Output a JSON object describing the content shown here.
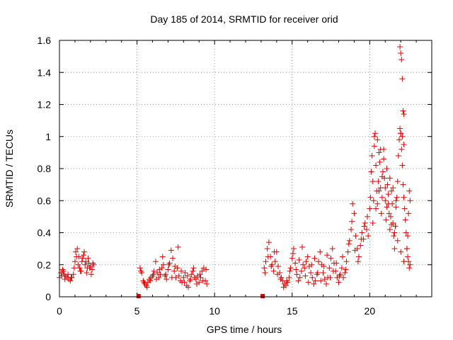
{
  "chart_data": {
    "type": "scatter",
    "title": "Day 185 of 2014, SRMTID for receiver orid",
    "xlabel": "GPS time / hours",
    "ylabel": "SRMTID / TECUs",
    "xlim": [
      0,
      24
    ],
    "ylim": [
      0,
      1.6
    ],
    "x_ticks": [
      0,
      5,
      10,
      15,
      20
    ],
    "x_tick_labels": [
      "0",
      "5",
      "10",
      "15",
      "20"
    ],
    "y_ticks": [
      0,
      0.2,
      0.4,
      0.6,
      0.8,
      1.0,
      1.2,
      1.4,
      1.6
    ],
    "y_tick_labels": [
      "0",
      "0.2",
      "0.4",
      "0.6",
      "0.8",
      "1",
      "1.2",
      "1.4",
      "1.6"
    ],
    "grid": true,
    "marker": "+",
    "color": "#e00000",
    "zero_markers": [
      {
        "x": 5.1,
        "y": 0
      },
      {
        "x": 13.1,
        "y": 0
      }
    ],
    "series": [
      {
        "name": "SRMTID",
        "x": [
          0.0,
          0.1,
          0.2,
          0.3,
          0.4,
          0.5,
          0.6,
          0.7,
          0.8,
          0.9,
          1.0,
          1.05,
          1.1,
          1.2,
          1.3,
          1.4,
          1.5,
          1.6,
          1.7,
          1.8,
          1.9,
          2.0,
          2.1,
          2.2,
          5.2,
          5.3,
          5.4,
          5.5,
          5.6,
          5.7,
          5.8,
          5.9,
          6.0,
          6.1,
          6.2,
          6.3,
          6.4,
          6.5,
          6.6,
          6.7,
          6.8,
          6.9,
          7.0,
          7.1,
          7.2,
          7.3,
          7.4,
          7.5,
          7.6,
          7.7,
          7.8,
          7.9,
          8.0,
          8.1,
          8.2,
          8.3,
          8.4,
          8.5,
          8.6,
          8.7,
          8.8,
          8.9,
          9.0,
          9.1,
          9.2,
          9.3,
          9.4,
          9.5,
          13.2,
          13.3,
          13.4,
          13.5,
          13.6,
          13.7,
          13.8,
          13.9,
          14.0,
          14.1,
          14.2,
          14.3,
          14.4,
          14.5,
          14.6,
          14.7,
          14.8,
          14.9,
          15.0,
          15.1,
          15.2,
          15.3,
          15.4,
          15.5,
          15.6,
          15.7,
          15.8,
          15.9,
          16.0,
          16.1,
          16.2,
          16.3,
          16.4,
          16.5,
          16.6,
          16.7,
          16.8,
          16.9,
          17.0,
          17.1,
          17.2,
          17.3,
          17.4,
          17.5,
          17.6,
          17.7,
          17.8,
          17.9,
          18.0,
          18.1,
          18.2,
          18.3,
          18.4,
          18.5,
          18.6,
          18.7,
          18.8,
          18.9,
          19.0,
          19.1,
          19.2,
          19.3,
          19.4,
          19.5,
          19.6,
          19.7,
          19.8,
          19.9,
          20.0,
          20.05,
          20.1,
          20.15,
          20.2,
          20.25,
          20.3,
          20.35,
          20.4,
          20.45,
          20.5,
          20.55,
          20.6,
          20.65,
          20.7,
          20.75,
          20.8,
          20.85,
          20.9,
          20.95,
          21.0,
          21.05,
          21.1,
          21.15,
          21.2,
          21.25,
          21.3,
          21.35,
          21.4,
          21.45,
          21.5,
          21.55,
          21.6,
          21.65,
          21.7,
          21.75,
          21.8,
          21.85,
          21.9,
          21.95,
          22.0,
          22.05,
          22.1,
          22.15,
          22.2,
          22.25,
          22.3,
          22.35,
          22.4,
          22.45,
          22.5,
          22.55,
          22.6,
          21.95,
          22.0,
          22.05,
          22.1,
          22.15,
          22.2,
          22.0,
          22.1,
          22.2,
          20.3,
          20.5,
          20.7,
          20.9,
          21.1,
          21.3,
          21.5,
          21.7,
          20.2,
          20.4,
          20.6,
          20.8,
          21.0,
          21.2,
          21.4,
          21.6,
          21.8,
          22.0,
          22.2,
          22.4,
          22.5,
          22.6,
          22.55,
          22.45,
          0.15,
          0.25,
          0.35,
          0.55,
          0.75,
          0.95,
          1.15,
          1.25,
          1.35,
          1.45,
          1.55,
          1.65,
          1.75,
          1.85,
          1.95,
          2.05,
          2.15,
          5.25,
          5.45,
          5.65,
          5.85,
          6.05,
          6.25,
          6.45,
          6.65,
          6.85,
          7.05,
          7.25,
          7.45,
          7.65,
          7.85,
          8.05,
          8.25,
          8.45,
          8.65,
          8.85,
          9.05,
          9.25,
          9.45,
          13.25,
          13.45,
          13.65,
          13.85,
          14.05,
          14.25,
          14.45,
          14.65,
          14.85,
          15.05,
          15.25,
          15.45,
          15.65,
          15.85,
          16.05,
          16.25,
          16.45,
          16.65,
          16.85,
          17.05,
          17.25,
          17.45,
          17.65,
          17.85,
          18.05,
          18.25,
          18.45,
          18.65,
          18.85,
          19.05,
          19.25,
          19.45,
          19.65,
          19.85
        ],
        "y": [
          0.12,
          0.15,
          0.17,
          0.14,
          0.13,
          0.12,
          0.11,
          0.1,
          0.12,
          0.14,
          0.22,
          0.28,
          0.25,
          0.2,
          0.18,
          0.16,
          0.24,
          0.28,
          0.22,
          0.18,
          0.21,
          0.19,
          0.17,
          0.2,
          0.18,
          0.15,
          0.1,
          0.08,
          0.07,
          0.09,
          0.11,
          0.12,
          0.13,
          0.16,
          0.22,
          0.15,
          0.12,
          0.14,
          0.18,
          0.2,
          0.13,
          0.11,
          0.17,
          0.21,
          0.29,
          0.24,
          0.16,
          0.12,
          0.18,
          0.13,
          0.1,
          0.09,
          0.12,
          0.15,
          0.07,
          0.06,
          0.1,
          0.14,
          0.16,
          0.12,
          0.11,
          0.13,
          0.09,
          0.12,
          0.16,
          0.18,
          0.1,
          0.08,
          0.18,
          0.22,
          0.3,
          0.34,
          0.25,
          0.2,
          0.16,
          0.22,
          0.28,
          0.19,
          0.15,
          0.12,
          0.1,
          0.08,
          0.07,
          0.09,
          0.12,
          0.18,
          0.24,
          0.3,
          0.21,
          0.14,
          0.1,
          0.12,
          0.16,
          0.2,
          0.18,
          0.22,
          0.25,
          0.19,
          0.15,
          0.12,
          0.08,
          0.1,
          0.14,
          0.22,
          0.28,
          0.2,
          0.15,
          0.11,
          0.08,
          0.12,
          0.18,
          0.24,
          0.3,
          0.21,
          0.16,
          0.12,
          0.09,
          0.14,
          0.18,
          0.12,
          0.15,
          0.22,
          0.28,
          0.35,
          0.42,
          0.58,
          0.52,
          0.38,
          0.3,
          0.25,
          0.32,
          0.4,
          0.36,
          0.46,
          0.42,
          0.38,
          0.55,
          0.62,
          0.78,
          0.88,
          0.72,
          0.6,
          0.94,
          1.02,
          0.82,
          0.66,
          0.58,
          0.72,
          0.9,
          0.84,
          0.68,
          0.52,
          0.62,
          0.78,
          0.92,
          0.74,
          0.6,
          0.48,
          0.56,
          0.7,
          0.64,
          0.52,
          0.42,
          0.5,
          0.66,
          0.58,
          0.46,
          0.38,
          0.3,
          0.44,
          0.56,
          0.62,
          0.72,
          0.88,
          0.98,
          1.05,
          1.02,
          0.92,
          0.82,
          0.7,
          0.62,
          0.55,
          0.48,
          0.4,
          0.3,
          0.25,
          0.22,
          0.18,
          0.2,
          1.56,
          1.52,
          1.48,
          1.36,
          1.16,
          1.14,
          1.02,
          1.0,
          0.95,
          1.0,
          0.98,
          0.92,
          0.86,
          0.8,
          0.74,
          0.68,
          0.6,
          0.46,
          0.55,
          0.66,
          0.75,
          0.68,
          0.58,
          0.45,
          0.4,
          0.35,
          0.28,
          0.22,
          0.3,
          0.52,
          0.6,
          0.66,
          0.38,
          0.13,
          0.16,
          0.11,
          0.14,
          0.12,
          0.18,
          0.3,
          0.25,
          0.16,
          0.22,
          0.26,
          0.2,
          0.15,
          0.24,
          0.18,
          0.14,
          0.21,
          0.16,
          0.09,
          0.06,
          0.1,
          0.14,
          0.11,
          0.17,
          0.25,
          0.14,
          0.2,
          0.12,
          0.19,
          0.31,
          0.16,
          0.09,
          0.13,
          0.11,
          0.18,
          0.08,
          0.14,
          0.1,
          0.17,
          0.15,
          0.25,
          0.19,
          0.28,
          0.14,
          0.11,
          0.06,
          0.1,
          0.16,
          0.27,
          0.17,
          0.23,
          0.31,
          0.13,
          0.09,
          0.2,
          0.24,
          0.15,
          0.1,
          0.19,
          0.26,
          0.12,
          0.16,
          0.21,
          0.13,
          0.25,
          0.17,
          0.33,
          0.47,
          0.29,
          0.22,
          0.36,
          0.44,
          0.5
        ]
      }
    ]
  }
}
